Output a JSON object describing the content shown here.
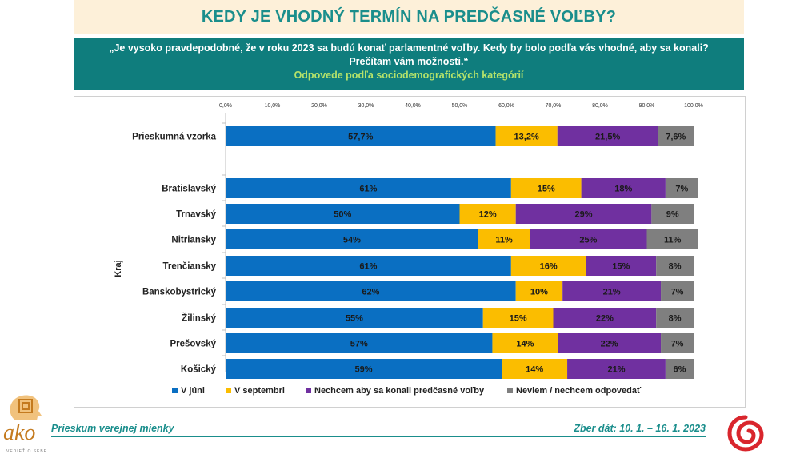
{
  "header": {
    "title": "KEDY JE VHODNÝ TERMÍN NA PREDČASNÉ VOĽBY?",
    "question_line1": "„Je vysoko pravdepodobné, že v roku 2023 sa budú konať parlamentné voľby. Kedy by bolo podľa vás vhodné, aby sa konali?",
    "question_line2": "Prečítam vám možnosti.“",
    "subtitle": "Odpovede podľa sociodemografických kategórií"
  },
  "footer": {
    "left": "Prieskum verejnej mienky",
    "right": "Zber dát: 10. 1. – 16. 1. 2023"
  },
  "logo": {
    "text": "ako",
    "tagline": "VEDIEŤ O SEBE"
  },
  "colors": {
    "v_juni": "#0a6fc2",
    "v_septembri": "#fbbd00",
    "nechcem": "#7030a0",
    "neviem": "#7f7f7f",
    "teal": "#1a8e8c"
  },
  "chart_data": {
    "type": "bar",
    "orientation": "horizontal",
    "stacked": true,
    "xlim": [
      0,
      100
    ],
    "ticks": [
      "0,0%",
      "10,0%",
      "20,0%",
      "30,0%",
      "40,0%",
      "50,0%",
      "60,0%",
      "70,0%",
      "80,0%",
      "90,0%",
      "100,0%"
    ],
    "group_label": "Kraj",
    "categories": [
      "Prieskumná vzorka",
      "Bratislavský",
      "Trnavský",
      "Nitriansky",
      "Trenčiansky",
      "Banskobystrický",
      "Žilinský",
      "Prešovský",
      "Košický"
    ],
    "series": [
      {
        "name": "V júni",
        "color": "#0a6fc2",
        "values": [
          57.7,
          61,
          50,
          54,
          61,
          62,
          55,
          57,
          59
        ],
        "labels": [
          "57,7%",
          "61%",
          "50%",
          "54%",
          "61%",
          "62%",
          "55%",
          "57%",
          "59%"
        ]
      },
      {
        "name": "V septembri",
        "color": "#fbbd00",
        "values": [
          13.2,
          15,
          12,
          11,
          16,
          10,
          15,
          14,
          14
        ],
        "labels": [
          "13,2%",
          "15%",
          "12%",
          "11%",
          "16%",
          "10%",
          "15%",
          "14%",
          "14%"
        ]
      },
      {
        "name": "Nechcem aby sa konali predčasné voľby",
        "color": "#7030a0",
        "values": [
          21.5,
          18,
          29,
          25,
          15,
          21,
          22,
          22,
          21
        ],
        "labels": [
          "21,5%",
          "18%",
          "29%",
          "25%",
          "15%",
          "21%",
          "22%",
          "22%",
          "21%"
        ]
      },
      {
        "name": "Neviem / nechcem odpovedať",
        "color": "#7f7f7f",
        "values": [
          7.6,
          7,
          9,
          11,
          8,
          7,
          8,
          7,
          6
        ],
        "labels": [
          "7,6%",
          "7%",
          "9%",
          "11%",
          "8%",
          "7%",
          "8%",
          "7%",
          "6%"
        ]
      }
    ],
    "legend_position": "bottom",
    "grid": false
  }
}
